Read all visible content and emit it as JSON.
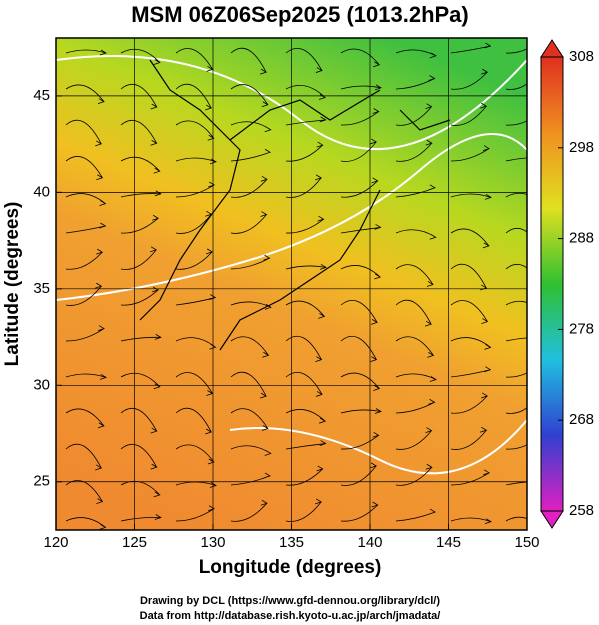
{
  "title": "MSM 06Z06Sep2025 (1013.2hPa)",
  "x_axis": {
    "label": "Longitude (degrees)",
    "lim": [
      120,
      150
    ],
    "ticks": [
      120,
      125,
      130,
      135,
      140,
      145,
      150
    ]
  },
  "y_axis": {
    "label": "Latitude  (degrees)",
    "lim": [
      22.5,
      48
    ],
    "ticks": [
      25,
      30,
      35,
      40,
      45
    ]
  },
  "colorbar": {
    "lim": [
      258,
      308
    ],
    "ticks": [
      258,
      268,
      278,
      288,
      298,
      308
    ],
    "colors": [
      "#e020c0",
      "#3040d0",
      "#20c0e0",
      "#30c030",
      "#e0e020",
      "#f09020",
      "#e03020"
    ]
  },
  "credits": [
    "Drawing by DCL (https://www.gfd-dennou.org/library/dcl/)",
    "Data from http://database.rish.kyoto-u.ac.jp/arch/jmadata/"
  ]
}
